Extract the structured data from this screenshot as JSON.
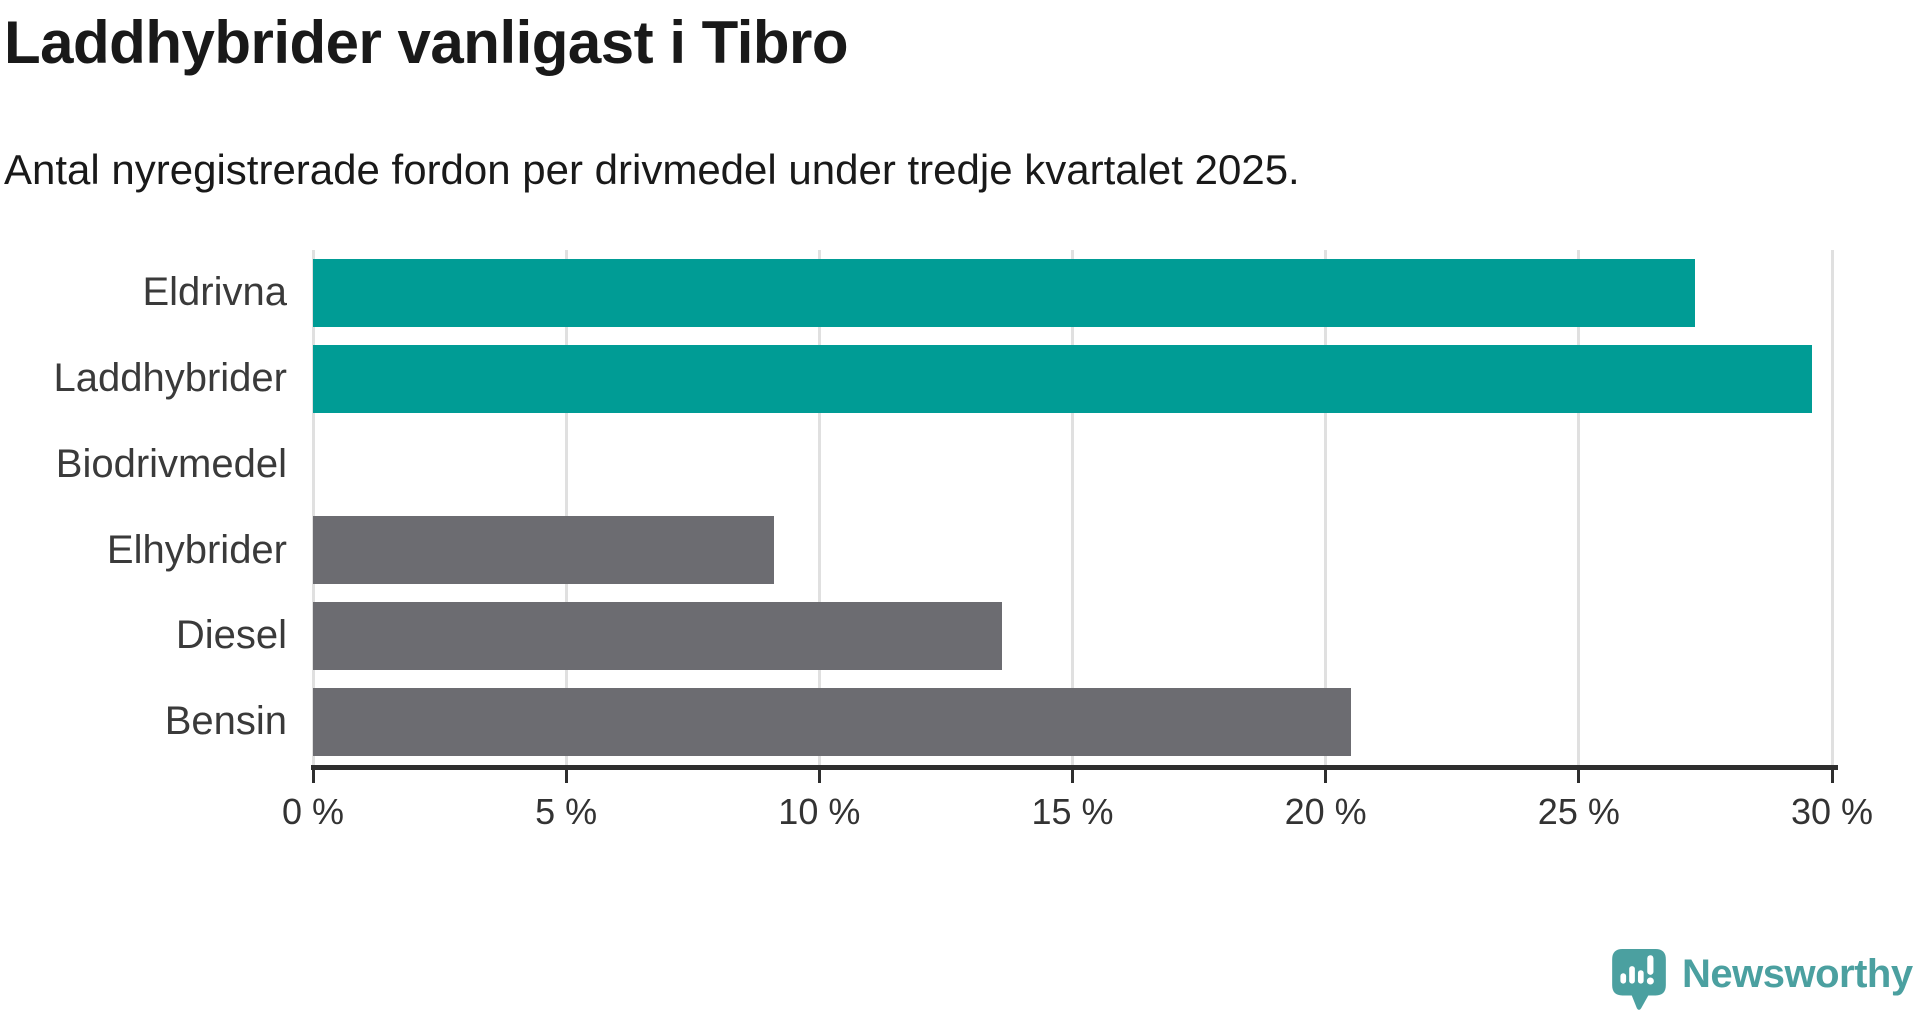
{
  "header": {
    "title": "Laddhybrider vanligast i Tibro",
    "subtitle": "Antal nyregistrerade fordon per drivmedel under tredje kvartalet 2025."
  },
  "chart_data": {
    "type": "bar",
    "orientation": "horizontal",
    "title": "Laddhybrider vanligast i Tibro",
    "subtitle": "Antal nyregistrerade fordon per drivmedel under tredje kvartalet 2025.",
    "categories": [
      "Eldrivna",
      "Laddhybrider",
      "Biodrivmedel",
      "Elhybrider",
      "Diesel",
      "Bensin"
    ],
    "values": [
      27.3,
      29.6,
      0,
      9.1,
      13.6,
      20.5
    ],
    "unit": "%",
    "xlim": [
      0,
      30
    ],
    "xticks": [
      0,
      5,
      10,
      15,
      20,
      25,
      30
    ],
    "xtick_labels": [
      "0 %",
      "5 %",
      "10 %",
      "15 %",
      "20 %",
      "25 %",
      "30 %"
    ],
    "bar_colors": [
      "#009C95",
      "#009C95",
      "#6C6C71",
      "#6C6C71",
      "#6C6C71",
      "#6C6C71"
    ],
    "highlight_color": "#009C95",
    "default_color": "#6C6C71",
    "grid": true,
    "legend": "none"
  },
  "branding": {
    "logo_text": "Newsworthy",
    "brand_color": "#4BA0A0"
  }
}
